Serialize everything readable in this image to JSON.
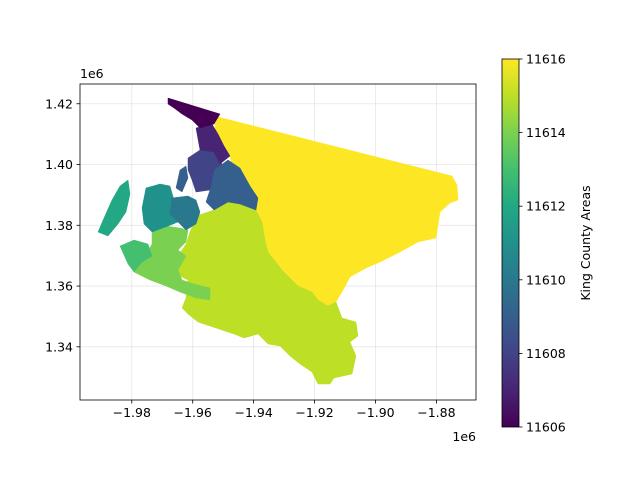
{
  "chart_data": {
    "type": "choropleth",
    "title": "",
    "xlabel": "",
    "ylabel": "",
    "x_offset_label": "1e6",
    "y_offset_label": "1e6",
    "xlim": [
      -1.997,
      -1.867
    ],
    "ylim": [
      1.3225,
      1.4265
    ],
    "x_ticks": [
      "−1.98",
      "−1.96",
      "−1.94",
      "−1.92",
      "−1.90",
      "−1.88"
    ],
    "y_ticks": [
      "1.34",
      "1.36",
      "1.38",
      "1.40",
      "1.42"
    ],
    "grid": true,
    "colorbar": {
      "label": "King County Areas",
      "colormap": "viridis",
      "range": [
        11606,
        11616
      ],
      "ticks": [
        "11606",
        "11608",
        "11610",
        "11612",
        "11614",
        "11616"
      ]
    },
    "regions": [
      {
        "value": 11616,
        "color": "#fde725"
      },
      {
        "value": 11615,
        "color": "#bddf26"
      },
      {
        "value": 11614,
        "color": "#7ad151"
      },
      {
        "value": 11613,
        "color": "#44bf70"
      },
      {
        "value": 11612,
        "color": "#22a884"
      },
      {
        "value": 11611,
        "color": "#21918c"
      },
      {
        "value": 11610,
        "color": "#2a788e"
      },
      {
        "value": 11609,
        "color": "#355f8d"
      },
      {
        "value": 11608,
        "color": "#414487"
      },
      {
        "value": 11607,
        "color": "#482475"
      },
      {
        "value": 11606,
        "color": "#440154"
      }
    ]
  }
}
